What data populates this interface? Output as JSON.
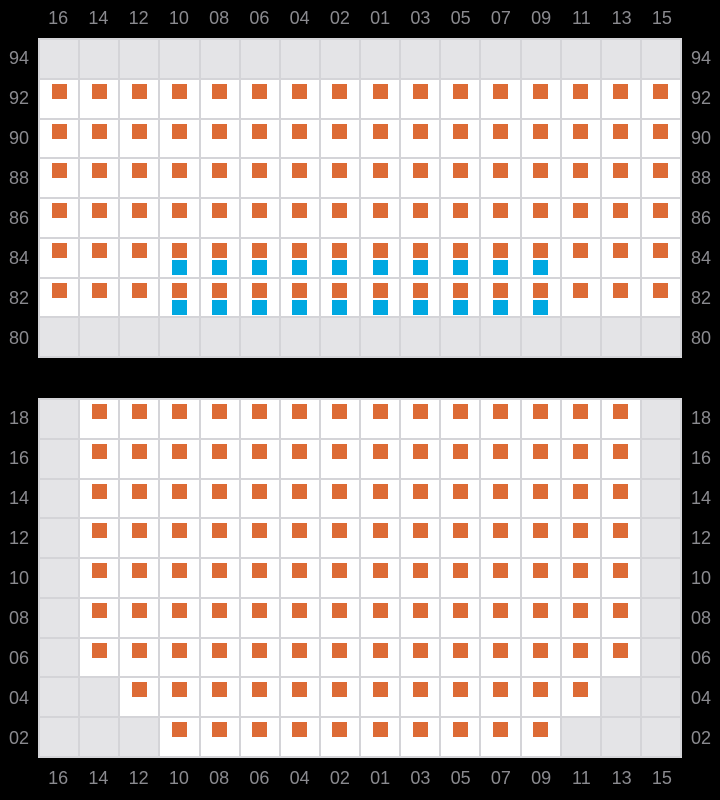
{
  "colors": {
    "page_bg": "#000000",
    "label_text": "#8a8a8f",
    "grid_line": "#d4d4d8",
    "cell_white": "#ffffff",
    "cell_gray": "#e4e4e7",
    "marker_orange": "#dd6b35",
    "marker_blue": "#00a8e1"
  },
  "column_labels": [
    "16",
    "14",
    "12",
    "10",
    "08",
    "06",
    "04",
    "02",
    "01",
    "03",
    "05",
    "07",
    "09",
    "11",
    "13",
    "15"
  ],
  "top_grid": {
    "row_labels": [
      "94",
      "92",
      "90",
      "88",
      "86",
      "84",
      "82",
      "80"
    ],
    "rows": [
      [
        "gray",
        "gray",
        "gray",
        "gray",
        "gray",
        "gray",
        "gray",
        "gray",
        "gray",
        "gray",
        "gray",
        "gray",
        "gray",
        "gray",
        "gray",
        "gray"
      ],
      [
        "orange",
        "orange",
        "orange",
        "orange",
        "orange",
        "orange",
        "orange",
        "orange",
        "orange",
        "orange",
        "orange",
        "orange",
        "orange",
        "orange",
        "orange",
        "orange"
      ],
      [
        "orange",
        "orange",
        "orange",
        "orange",
        "orange",
        "orange",
        "orange",
        "orange",
        "orange",
        "orange",
        "orange",
        "orange",
        "orange",
        "orange",
        "orange",
        "orange"
      ],
      [
        "orange",
        "orange",
        "orange",
        "orange",
        "orange",
        "orange",
        "orange",
        "orange",
        "orange",
        "orange",
        "orange",
        "orange",
        "orange",
        "orange",
        "orange",
        "orange"
      ],
      [
        "orange",
        "orange",
        "orange",
        "orange",
        "orange",
        "orange",
        "orange",
        "orange",
        "orange",
        "orange",
        "orange",
        "orange",
        "orange",
        "orange",
        "orange",
        "orange"
      ],
      [
        "orange",
        "orange",
        "orange",
        "orange-blue",
        "orange-blue",
        "orange-blue",
        "orange-blue",
        "orange-blue",
        "orange-blue",
        "orange-blue",
        "orange-blue",
        "orange-blue",
        "orange-blue",
        "orange",
        "orange",
        "orange"
      ],
      [
        "orange",
        "orange",
        "orange",
        "orange-blue",
        "orange-blue",
        "orange-blue",
        "orange-blue",
        "orange-blue",
        "orange-blue",
        "orange-blue",
        "orange-blue",
        "orange-blue",
        "orange-blue",
        "orange",
        "orange",
        "orange"
      ],
      [
        "gray",
        "gray",
        "gray",
        "gray",
        "gray",
        "gray",
        "gray",
        "gray",
        "gray",
        "gray",
        "gray",
        "gray",
        "gray",
        "gray",
        "gray",
        "gray"
      ]
    ]
  },
  "bottom_grid": {
    "row_labels": [
      "18",
      "16",
      "14",
      "12",
      "10",
      "08",
      "06",
      "04",
      "02"
    ],
    "rows": [
      [
        "gray",
        "orange",
        "orange",
        "orange",
        "orange",
        "orange",
        "orange",
        "orange",
        "orange",
        "orange",
        "orange",
        "orange",
        "orange",
        "orange",
        "orange",
        "gray"
      ],
      [
        "gray",
        "orange",
        "orange",
        "orange",
        "orange",
        "orange",
        "orange",
        "orange",
        "orange",
        "orange",
        "orange",
        "orange",
        "orange",
        "orange",
        "orange",
        "gray"
      ],
      [
        "gray",
        "orange",
        "orange",
        "orange",
        "orange",
        "orange",
        "orange",
        "orange",
        "orange",
        "orange",
        "orange",
        "orange",
        "orange",
        "orange",
        "orange",
        "gray"
      ],
      [
        "gray",
        "orange",
        "orange",
        "orange",
        "orange",
        "orange",
        "orange",
        "orange",
        "orange",
        "orange",
        "orange",
        "orange",
        "orange",
        "orange",
        "orange",
        "gray"
      ],
      [
        "gray",
        "orange",
        "orange",
        "orange",
        "orange",
        "orange",
        "orange",
        "orange",
        "orange",
        "orange",
        "orange",
        "orange",
        "orange",
        "orange",
        "orange",
        "gray"
      ],
      [
        "gray",
        "orange",
        "orange",
        "orange",
        "orange",
        "orange",
        "orange",
        "orange",
        "orange",
        "orange",
        "orange",
        "orange",
        "orange",
        "orange",
        "orange",
        "gray"
      ],
      [
        "gray",
        "orange",
        "orange",
        "orange",
        "orange",
        "orange",
        "orange",
        "orange",
        "orange",
        "orange",
        "orange",
        "orange",
        "orange",
        "orange",
        "orange",
        "gray"
      ],
      [
        "gray",
        "gray",
        "orange",
        "orange",
        "orange",
        "orange",
        "orange",
        "orange",
        "orange",
        "orange",
        "orange",
        "orange",
        "orange",
        "orange",
        "gray",
        "gray"
      ],
      [
        "gray",
        "gray",
        "gray",
        "orange",
        "orange",
        "orange",
        "orange",
        "orange",
        "orange",
        "orange",
        "orange",
        "orange",
        "orange",
        "gray",
        "gray",
        "gray"
      ]
    ]
  }
}
